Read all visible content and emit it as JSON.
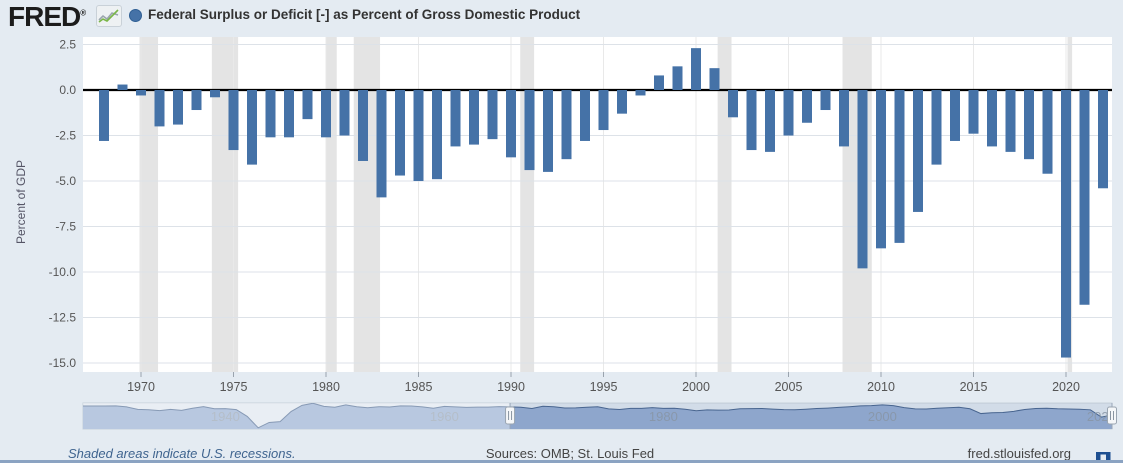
{
  "header": {
    "logo": "FRED",
    "logo_reg": "®",
    "title": "Federal Surplus or Deficit [-] as Percent of Gross Domestic Product",
    "legend_dot_color": "#4572a7"
  },
  "chart_data": {
    "type": "bar",
    "title": "Federal Surplus or Deficit [-] as Percent of Gross Domestic Product",
    "xlabel": "",
    "ylabel": "Percent of GDP",
    "ylim": [
      -15.5,
      2.9
    ],
    "yticks": [
      2.5,
      0.0,
      -2.5,
      -5.0,
      -7.5,
      -10.0,
      -12.5,
      -15.0
    ],
    "xticks": [
      1970,
      1975,
      1980,
      1985,
      1990,
      1995,
      2000,
      2005,
      2010,
      2015,
      2020
    ],
    "grid": true,
    "bar_color": "#4572a7",
    "recession_color": "#e4e4e4",
    "categories": [
      1968,
      1969,
      1970,
      1971,
      1972,
      1973,
      1974,
      1975,
      1976,
      1977,
      1978,
      1979,
      1980,
      1981,
      1982,
      1983,
      1984,
      1985,
      1986,
      1987,
      1988,
      1989,
      1990,
      1991,
      1992,
      1993,
      1994,
      1995,
      1996,
      1997,
      1998,
      1999,
      2000,
      2001,
      2002,
      2003,
      2004,
      2005,
      2006,
      2007,
      2008,
      2009,
      2010,
      2011,
      2012,
      2013,
      2014,
      2015,
      2016,
      2017,
      2018,
      2019,
      2020,
      2021,
      2022
    ],
    "values": [
      -2.8,
      0.3,
      -0.3,
      -2.0,
      -1.9,
      -1.1,
      -0.4,
      -3.3,
      -4.1,
      -2.6,
      -2.6,
      -1.6,
      -2.6,
      -2.5,
      -3.9,
      -5.9,
      -4.7,
      -5.0,
      -4.9,
      -3.1,
      -3.0,
      -2.7,
      -3.7,
      -4.4,
      -4.5,
      -3.8,
      -2.8,
      -2.2,
      -1.3,
      -0.3,
      0.8,
      1.3,
      2.3,
      1.2,
      -1.5,
      -3.3,
      -3.4,
      -2.5,
      -1.8,
      -1.1,
      -3.1,
      -9.8,
      -8.7,
      -8.4,
      -6.7,
      -4.1,
      -2.8,
      -2.4,
      -3.1,
      -3.4,
      -3.8,
      -4.6,
      -14.7,
      -11.8,
      -5.4
    ],
    "recessions": [
      [
        1969.92,
        1970.92
      ],
      [
        1973.83,
        1975.25
      ],
      [
        1980.0,
        1980.58
      ],
      [
        1981.5,
        1982.92
      ],
      [
        1990.5,
        1991.25
      ],
      [
        2001.17,
        2001.92
      ],
      [
        2007.92,
        2009.5
      ],
      [
        2020.08,
        2020.33
      ]
    ]
  },
  "minimap": {
    "start_year": 1929,
    "end_year": 2022,
    "decade_labels": [
      1940,
      1960,
      1980,
      2000,
      2020
    ],
    "selection": [
      1966,
      2022
    ],
    "handle_glyph": "||",
    "series": [
      0.7,
      0.8,
      -0.6,
      -4.0,
      -4.5,
      -5.8,
      -4.0,
      -5.4,
      -2.5,
      -0.1,
      -3.1,
      -3.0,
      -4.3,
      -13.8,
      -29.6,
      -22.2,
      -21.0,
      -7.0,
      1.6,
      4.5,
      0.2,
      -1.1,
      2.2,
      -0.4,
      -1.7,
      -0.3,
      -0.7,
      0.9,
      0.7,
      -0.6,
      -2.5,
      0.1,
      -0.6,
      -1.2,
      -0.8,
      -0.9,
      -0.2,
      -0.5,
      -1.0,
      -2.8,
      0.3,
      -0.3,
      -2.0,
      -1.9,
      -1.1,
      -0.4,
      -3.3,
      -4.1,
      -2.6,
      -2.6,
      -1.6,
      -2.6,
      -2.5,
      -3.9,
      -5.9,
      -4.7,
      -5.0,
      -4.9,
      -3.1,
      -3.0,
      -2.7,
      -3.7,
      -4.4,
      -4.5,
      -3.8,
      -2.8,
      -2.2,
      -1.3,
      -0.3,
      0.8,
      1.3,
      2.3,
      1.2,
      -1.5,
      -3.3,
      -3.4,
      -2.5,
      -1.8,
      -1.1,
      -3.1,
      -9.8,
      -8.7,
      -8.4,
      -6.7,
      -4.1,
      -2.8,
      -2.4,
      -3.1,
      -3.4,
      -3.8,
      -4.6,
      -14.7,
      -11.8,
      -5.4
    ]
  },
  "footer": {
    "note": "Shaded areas indicate U.S. recessions.",
    "sources": "Sources: OMB; St. Louis Fed",
    "site": "fred.stlouisfed.org"
  }
}
